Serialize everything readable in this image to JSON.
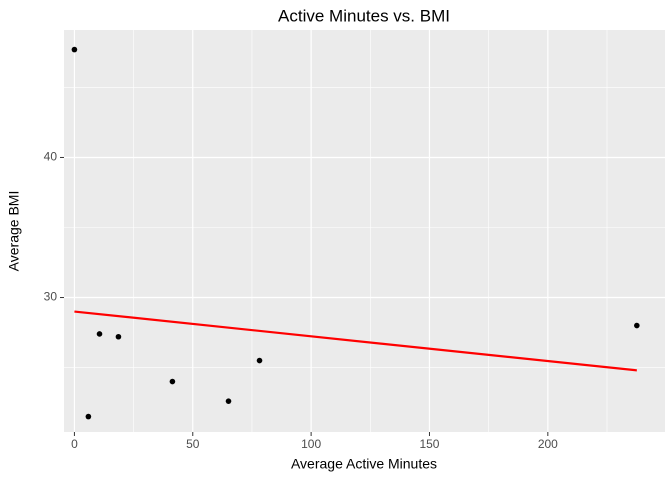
{
  "chart_data": {
    "type": "scatter",
    "title": "Active Minutes vs. BMI",
    "x_label": "Average Active Minutes",
    "y_label": "Average BMI",
    "x": [
      0,
      5.9,
      10.6,
      18.6,
      41.4,
      65.1,
      78.2,
      237.6
    ],
    "values": [
      47.7,
      21.5,
      27.4,
      27.2,
      24.0,
      22.6,
      25.5,
      28.0
    ],
    "color": "#000000",
    "trend": {
      "x": [
        0,
        237.6
      ],
      "values": [
        29.0,
        24.8
      ],
      "color": "#ff0000"
    },
    "xlim": [
      -4.4,
      249.5
    ],
    "ylim": [
      20.4,
      49.1
    ],
    "xticks": [
      0,
      50,
      100,
      150,
      200
    ],
    "yticks": [
      30,
      40
    ],
    "x_minor_ticks": [
      25,
      75,
      125,
      175,
      225
    ],
    "y_minor_ticks": [
      25,
      35,
      45
    ],
    "grid": true,
    "panel_color": "#ebebeb"
  }
}
